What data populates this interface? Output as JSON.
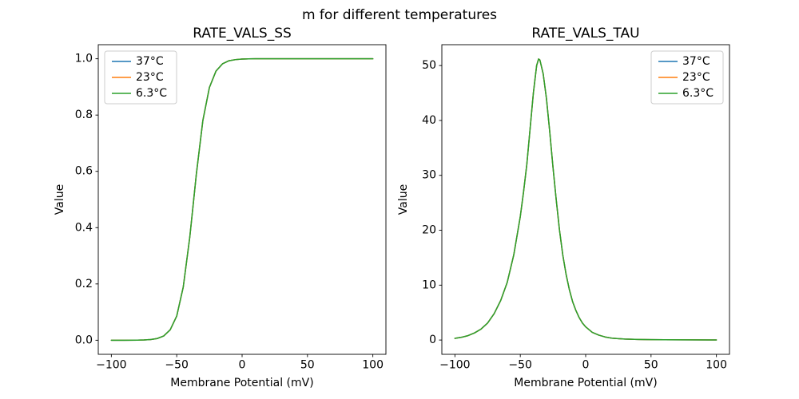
{
  "figure": {
    "suptitle": "m for different temperatures",
    "background": "#ffffff"
  },
  "chart_data": [
    {
      "type": "line",
      "title": "RATE_VALS_SS",
      "xlabel": "Membrane Potential (mV)",
      "ylabel": "Value",
      "xlim": [
        -110,
        110
      ],
      "ylim": [
        -0.05,
        1.05
      ],
      "xticks": [
        -100,
        -50,
        0,
        50,
        100
      ],
      "xtick_labels": [
        "−100",
        "−50",
        "0",
        "50",
        "100"
      ],
      "yticks": [
        0.0,
        0.2,
        0.4,
        0.6,
        0.8,
        1.0
      ],
      "ytick_labels": [
        "0.0",
        "0.2",
        "0.4",
        "0.6",
        "0.8",
        "1.0"
      ],
      "grid": false,
      "legend_position": "upper-left",
      "x": [
        -100,
        -90,
        -80,
        -75,
        -70,
        -65,
        -60,
        -55,
        -50,
        -45,
        -40,
        -37,
        -35,
        -30,
        -25,
        -20,
        -15,
        -10,
        -5,
        0,
        5,
        10,
        20,
        30,
        40,
        50,
        60,
        80,
        100
      ],
      "series": [
        {
          "name": "37°C",
          "color": "#1f77b4",
          "values": [
            0.0,
            0.0001,
            0.0004,
            0.0009,
            0.0024,
            0.006,
            0.015,
            0.037,
            0.086,
            0.189,
            0.367,
            0.5,
            0.59,
            0.781,
            0.898,
            0.956,
            0.982,
            0.993,
            0.997,
            0.999,
            0.9995,
            1.0,
            1.0,
            1.0,
            1.0,
            1.0,
            1.0,
            1.0,
            1.0
          ]
        },
        {
          "name": "23°C",
          "color": "#ff7f0e",
          "values": [
            0.0,
            0.0001,
            0.0004,
            0.0009,
            0.0024,
            0.006,
            0.015,
            0.037,
            0.086,
            0.189,
            0.367,
            0.5,
            0.59,
            0.781,
            0.898,
            0.956,
            0.982,
            0.993,
            0.997,
            0.999,
            0.9995,
            1.0,
            1.0,
            1.0,
            1.0,
            1.0,
            1.0,
            1.0,
            1.0
          ]
        },
        {
          "name": "6.3°C",
          "color": "#2ca02c",
          "values": [
            0.0,
            0.0001,
            0.0004,
            0.0009,
            0.0024,
            0.006,
            0.015,
            0.037,
            0.086,
            0.189,
            0.367,
            0.5,
            0.59,
            0.781,
            0.898,
            0.956,
            0.982,
            0.993,
            0.997,
            0.999,
            0.9995,
            1.0,
            1.0,
            1.0,
            1.0,
            1.0,
            1.0,
            1.0,
            1.0
          ]
        }
      ],
      "note": "All three temperature curves overlap exactly; green (6.3°C) drawn last is visible."
    },
    {
      "type": "line",
      "title": "RATE_VALS_TAU",
      "xlabel": "Membrane Potential (mV)",
      "ylabel": "Value",
      "xlim": [
        -110,
        110
      ],
      "ylim": [
        -2.6,
        53.8
      ],
      "xticks": [
        -100,
        -50,
        0,
        50,
        100
      ],
      "xtick_labels": [
        "−100",
        "−50",
        "0",
        "50",
        "100"
      ],
      "yticks": [
        0,
        10,
        20,
        30,
        40,
        50
      ],
      "ytick_labels": [
        "0",
        "10",
        "20",
        "30",
        "40",
        "50"
      ],
      "grid": false,
      "legend_position": "upper-right",
      "x": [
        -100,
        -95,
        -90,
        -85,
        -80,
        -75,
        -70,
        -65,
        -60,
        -55,
        -50,
        -47.5,
        -45,
        -42.5,
        -40,
        -37.5,
        -36,
        -35,
        -32.5,
        -30,
        -27.5,
        -25,
        -22.5,
        -20,
        -17.5,
        -15,
        -12.5,
        -10,
        -7.5,
        -5,
        -2.5,
        0,
        5,
        10,
        15,
        20,
        25,
        30,
        40,
        50,
        60,
        80,
        100
      ],
      "series": [
        {
          "name": "37°C",
          "color": "#1f77b4",
          "values": [
            0.3,
            0.5,
            0.8,
            1.3,
            2.0,
            3.1,
            4.8,
            7.2,
            10.5,
            15.5,
            22.5,
            27,
            32,
            38.5,
            45,
            50,
            51.2,
            51,
            48.5,
            44,
            38,
            31.5,
            25.5,
            20,
            15.5,
            12,
            9.2,
            7.0,
            5.4,
            4.1,
            3.1,
            2.4,
            1.4,
            0.9,
            0.55,
            0.35,
            0.25,
            0.18,
            0.1,
            0.07,
            0.05,
            0.03,
            0.02
          ]
        },
        {
          "name": "23°C",
          "color": "#ff7f0e",
          "values": [
            0.3,
            0.5,
            0.8,
            1.3,
            2.0,
            3.1,
            4.8,
            7.2,
            10.5,
            15.5,
            22.5,
            27,
            32,
            38.5,
            45,
            50,
            51.2,
            51,
            48.5,
            44,
            38,
            31.5,
            25.5,
            20,
            15.5,
            12,
            9.2,
            7.0,
            5.4,
            4.1,
            3.1,
            2.4,
            1.4,
            0.9,
            0.55,
            0.35,
            0.25,
            0.18,
            0.1,
            0.07,
            0.05,
            0.03,
            0.02
          ]
        },
        {
          "name": "6.3°C",
          "color": "#2ca02c",
          "values": [
            0.3,
            0.5,
            0.8,
            1.3,
            2.0,
            3.1,
            4.8,
            7.2,
            10.5,
            15.5,
            22.5,
            27,
            32,
            38.5,
            45,
            50,
            51.2,
            51,
            48.5,
            44,
            38,
            31.5,
            25.5,
            20,
            15.5,
            12,
            9.2,
            7.0,
            5.4,
            4.1,
            3.1,
            2.4,
            1.4,
            0.9,
            0.55,
            0.35,
            0.25,
            0.18,
            0.1,
            0.07,
            0.05,
            0.03,
            0.02
          ]
        }
      ],
      "note": "All three temperature curves overlap exactly; peak ≈ 51.2 at ≈ −36 mV."
    }
  ]
}
